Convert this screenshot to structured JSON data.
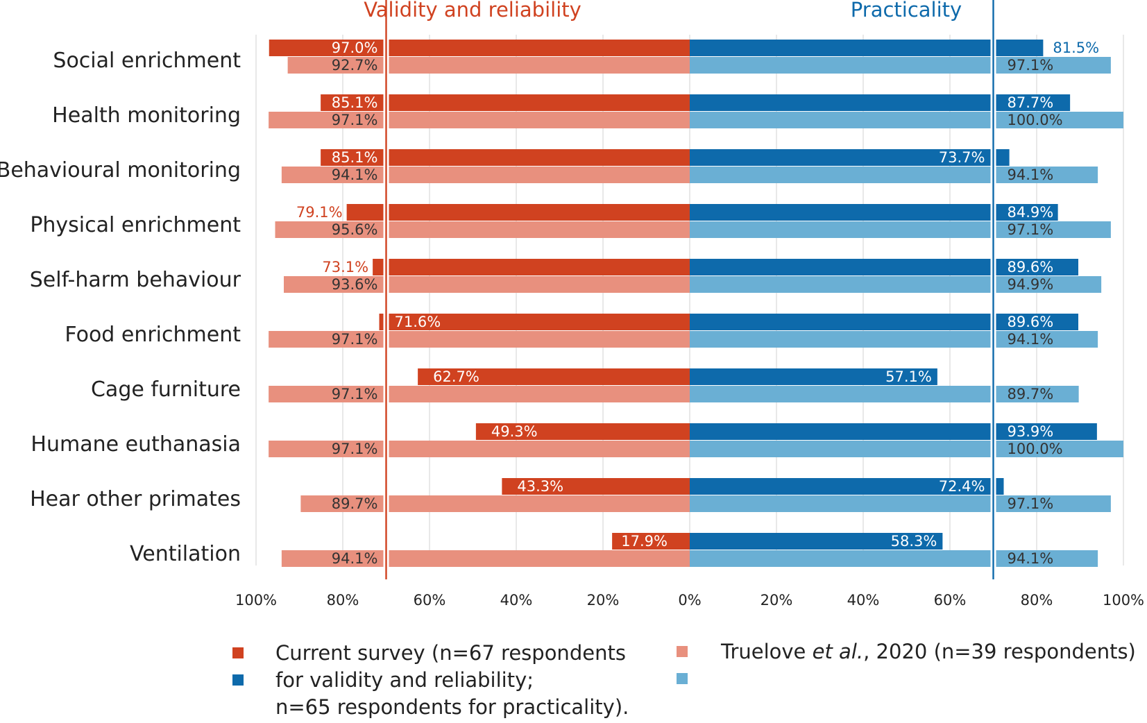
{
  "chart_data": {
    "type": "bar",
    "orientation": "horizontal",
    "layout": "diverging",
    "headers": {
      "left": "Validity and reliability",
      "right": "Practicality"
    },
    "categories": [
      "Social enrichment",
      "Health monitoring",
      "Behavioural monitoring",
      "Physical enrichment",
      "Self-harm behaviour",
      "Food enrichment",
      "Cage furniture",
      "Humane euthanasia",
      "Hear other primates",
      "Ventilation"
    ],
    "x_ticks": [
      "100%",
      "80%",
      "60%",
      "40%",
      "20%",
      "0%",
      "20%",
      "40%",
      "60%",
      "80%",
      "100%"
    ],
    "xlim": [
      0,
      100
    ],
    "axis_break": 70,
    "grid": true,
    "series": [
      {
        "name": "Current survey",
        "side": "left",
        "color": "#d04220",
        "values": [
          97.0,
          85.1,
          85.1,
          79.1,
          73.1,
          71.6,
          62.7,
          49.3,
          43.3,
          17.9
        ],
        "labels": [
          "97.0%",
          "85.1%",
          "85.1%",
          "79.1%",
          "73.1%",
          "71.6%",
          "62.7%",
          "49.3%",
          "43.3%",
          "17.9%"
        ]
      },
      {
        "name": "Truelove et al., 2020",
        "side": "left",
        "color": "#e8907e",
        "values": [
          92.7,
          97.1,
          94.1,
          95.6,
          93.6,
          97.1,
          97.1,
          97.1,
          89.7,
          94.1
        ],
        "labels": [
          "92.7%",
          "97.1%",
          "94.1%",
          "95.6%",
          "93.6%",
          "97.1%",
          "97.1%",
          "97.1%",
          "89.7%",
          "94.1%"
        ]
      },
      {
        "name": "Current survey",
        "side": "right",
        "color": "#0e6aab",
        "values": [
          81.5,
          87.7,
          73.7,
          84.9,
          89.6,
          89.6,
          57.1,
          93.9,
          72.4,
          58.3
        ],
        "labels": [
          "81.5%",
          "87.7%",
          "73.7%",
          "84.9%",
          "89.6%",
          "89.6%",
          "57.1%",
          "93.9%",
          "72.4%",
          "58.3%"
        ]
      },
      {
        "name": "Truelove et al., 2020",
        "side": "right",
        "color": "#6aafd4",
        "values": [
          97.1,
          100.0,
          94.1,
          97.1,
          94.9,
          94.1,
          89.7,
          100.0,
          97.1,
          94.1
        ],
        "labels": [
          "97.1%",
          "100.0%",
          "94.1%",
          "97.1%",
          "94.9%",
          "94.1%",
          "89.7%",
          "100.0%",
          "97.1%",
          "94.1%"
        ]
      }
    ],
    "legend": {
      "item1": {
        "line1": "Current survey (n=67 respondents",
        "line2": "for validity and reliability;",
        "line3": "n=65 respondents for practicality)."
      },
      "item2": {
        "prefix": "Truelove ",
        "italic": "et al.",
        "suffix": ", 2020 (n=39 respondents)"
      },
      "placement": "bottom"
    },
    "colors": {
      "current_left": "#d04220",
      "truelove_left": "#e8907e",
      "current_right": "#0e6aab",
      "truelove_right": "#6aafd4",
      "grid": "#d9d9d9",
      "text": "#222222"
    }
  }
}
